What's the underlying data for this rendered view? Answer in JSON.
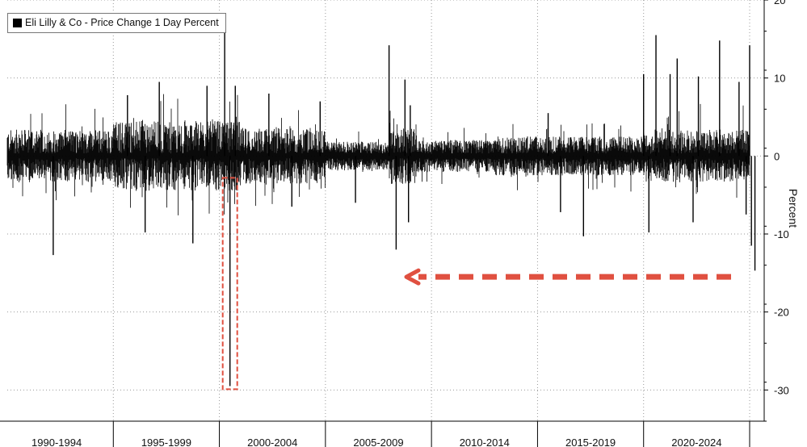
{
  "chart_data": {
    "type": "bar",
    "title": "Eli Lilly & Co - Price Change 1 Day Percent",
    "legend": [
      "Eli Lilly & Co - Price Change 1 Day Percent"
    ],
    "legend_position": "top-left",
    "ylabel": "Percent",
    "ylim": [
      -34,
      20
    ],
    "y_ticks": [
      20,
      10,
      0,
      -10,
      -20,
      -30
    ],
    "x_periods": [
      "1990-1994",
      "1995-1999",
      "2000-2004",
      "2005-2009",
      "2010-2014",
      "2015-2019",
      "2020-2024"
    ],
    "x_range": [
      "1990-01",
      "2025-01"
    ],
    "grid": "dotted",
    "series": [
      {
        "name": "Eli Lilly & Co - Price Change 1 Day Percent",
        "notable_points": [
          {
            "date": "1992-03",
            "value": -12.7
          },
          {
            "date": "1995-09",
            "value": 7.8
          },
          {
            "date": "1996-07",
            "value": -9.8
          },
          {
            "date": "1997-03",
            "value": 9.5
          },
          {
            "date": "1998-10",
            "value": -11.2
          },
          {
            "date": "1999-06",
            "value": 9
          },
          {
            "date": "2000-04",
            "value": 16
          },
          {
            "date": "2000-07",
            "value": -29.5
          },
          {
            "date": "2000-10",
            "value": 9
          },
          {
            "date": "2002-05",
            "value": 8
          },
          {
            "date": "2003-06",
            "value": -6.5
          },
          {
            "date": "2004-10",
            "value": 7
          },
          {
            "date": "2006-06",
            "value": -6
          },
          {
            "date": "2008-01",
            "value": 14.2
          },
          {
            "date": "2008-05",
            "value": -12
          },
          {
            "date": "2008-10",
            "value": 9.8
          },
          {
            "date": "2008-12",
            "value": -8.5
          },
          {
            "date": "2009-01",
            "value": 6.5
          },
          {
            "date": "2015-07",
            "value": 5.5
          },
          {
            "date": "2016-02",
            "value": -7.2
          },
          {
            "date": "2017-03",
            "value": -10.3
          },
          {
            "date": "2020-01",
            "value": 10.5
          },
          {
            "date": "2020-04",
            "value": -9.8
          },
          {
            "date": "2020-08",
            "value": 15.5
          },
          {
            "date": "2021-04",
            "value": 10.5
          },
          {
            "date": "2021-08",
            "value": 12.5
          },
          {
            "date": "2022-05",
            "value": -8.5
          },
          {
            "date": "2022-08",
            "value": 10.2
          },
          {
            "date": "2023-08",
            "value": 14.8
          },
          {
            "date": "2024-07",
            "value": 9.5
          },
          {
            "date": "2024-11",
            "value": -7.5
          },
          {
            "date": "2025-01",
            "value": 14.2
          },
          {
            "date": "2025-02",
            "value": -11.5
          },
          {
            "date": "2025-04",
            "value": -14.7
          }
        ],
        "typical_daily_range": [
          -3,
          3
        ]
      }
    ],
    "annotations": [
      {
        "type": "highlight-box",
        "around": "2000-07 drop of about -30%",
        "color": "#e05040"
      },
      {
        "type": "dashed-arrow",
        "direction": "left",
        "color": "#e05040",
        "level": -15.5
      }
    ]
  }
}
